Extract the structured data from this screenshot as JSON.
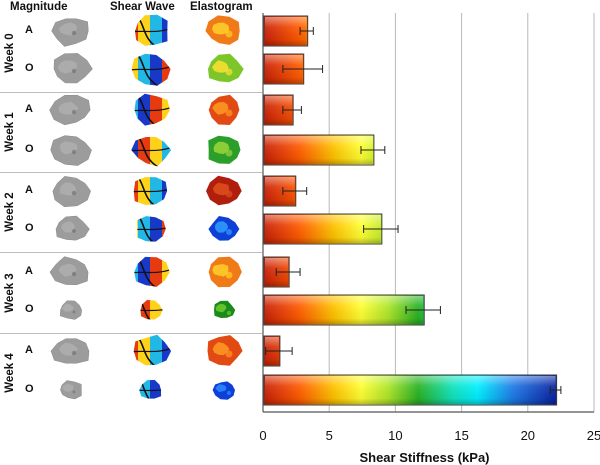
{
  "panel_headers": {
    "magnitude": "Magnitude",
    "shear_wave": "Shear Wave",
    "elastogram": "Elastogram"
  },
  "row_groups": [
    {
      "week": "Week 0",
      "rows": [
        "A",
        "O"
      ]
    },
    {
      "week": "Week 1",
      "rows": [
        "A",
        "O"
      ]
    },
    {
      "week": "Week 2",
      "rows": [
        "A",
        "O"
      ]
    },
    {
      "week": "Week 3",
      "rows": [
        "A",
        "O"
      ]
    },
    {
      "week": "Week 4",
      "rows": [
        "A",
        "O"
      ]
    }
  ],
  "chart_data": {
    "type": "bar",
    "orientation": "horizontal",
    "title": "",
    "xlabel": "Shear Stiffness (kPa)",
    "ylabel": "",
    "xlim": [
      0,
      25
    ],
    "xticks": [
      0,
      5,
      10,
      15,
      20,
      25
    ],
    "grid": true,
    "categories": [
      "Week 0 A",
      "Week 0 O",
      "Week 1 A",
      "Week 1 O",
      "Week 2 A",
      "Week 2 O",
      "Week 3 A",
      "Week 3 O",
      "Week 4 A",
      "Week 4 O"
    ],
    "values": [
      3.3,
      3.0,
      2.2,
      8.3,
      2.4,
      8.9,
      1.9,
      12.1,
      1.2,
      22.1
    ],
    "errors": [
      0.5,
      1.5,
      0.7,
      0.9,
      0.9,
      1.3,
      0.9,
      1.3,
      1.0,
      0.4
    ],
    "color_scale": "rainbow (red at 0 kPa to dark blue at 22 kPa)"
  }
}
